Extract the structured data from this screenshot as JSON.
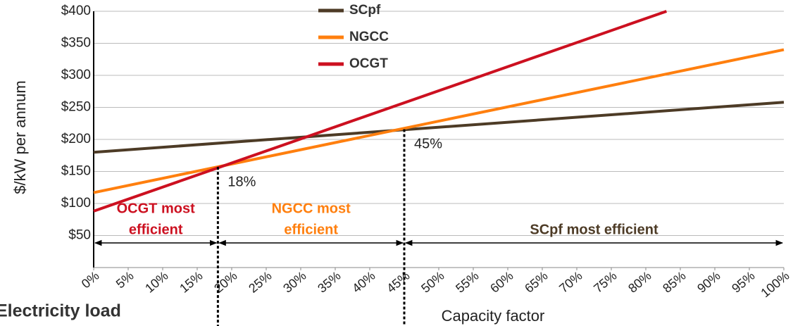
{
  "chart_data": {
    "type": "line",
    "xlabel": "Capacity factor",
    "ylabel": "$/kW per annum",
    "footer": "Electricity load",
    "xlim": [
      0,
      100
    ],
    "xticks": [
      {
        "value": 0,
        "label": "0%"
      },
      {
        "value": 5,
        "label": "5%"
      },
      {
        "value": 10,
        "label": "10%"
      },
      {
        "value": 15,
        "label": "15%"
      },
      {
        "value": 20,
        "label": "20%"
      },
      {
        "value": 25,
        "label": "25%"
      },
      {
        "value": 30,
        "label": "30%"
      },
      {
        "value": 35,
        "label": "35%"
      },
      {
        "value": 40,
        "label": "40%"
      },
      {
        "value": 45,
        "label": "45%"
      },
      {
        "value": 50,
        "label": "50%"
      },
      {
        "value": 55,
        "label": "55%"
      },
      {
        "value": 60,
        "label": "60%"
      },
      {
        "value": 65,
        "label": "65%"
      },
      {
        "value": 70,
        "label": "70%"
      },
      {
        "value": 75,
        "label": "75%"
      },
      {
        "value": 80,
        "label": "80%"
      },
      {
        "value": 85,
        "label": "85%"
      },
      {
        "value": 90,
        "label": "90%"
      },
      {
        "value": 95,
        "label": "95%"
      },
      {
        "value": 100,
        "label": "100%"
      }
    ],
    "ylim": [
      0,
      400
    ],
    "yticks": [
      {
        "value": 50,
        "label": "$50"
      },
      {
        "value": 100,
        "label": "$100"
      },
      {
        "value": 150,
        "label": "$150"
      },
      {
        "value": 200,
        "label": "$200"
      },
      {
        "value": 250,
        "label": "$250"
      },
      {
        "value": 300,
        "label": "$300"
      },
      {
        "value": 350,
        "label": "$350"
      },
      {
        "value": 400,
        "label": "$400"
      }
    ],
    "grid": true,
    "series": [
      {
        "name": "SCpf",
        "color": "#4d3b26",
        "x": [
          0,
          100
        ],
        "values": [
          180,
          258
        ]
      },
      {
        "name": "NGCC",
        "color": "#ff7f0e",
        "x": [
          0,
          100
        ],
        "values": [
          117,
          340
        ]
      },
      {
        "name": "OCGT",
        "color": "#cc1020",
        "x": [
          0,
          83
        ],
        "values": [
          88,
          400
        ]
      }
    ],
    "crossovers": [
      {
        "x": 18,
        "y": 157,
        "label": "18%"
      },
      {
        "x": 45,
        "y": 216,
        "label": "45%"
      }
    ],
    "regions": [
      {
        "lines": [
          "OCGT most",
          "efficient"
        ],
        "color": "#cc1020"
      },
      {
        "lines": [
          "NGCC most",
          "efficient"
        ],
        "color": "#ff7f0e"
      },
      {
        "lines": [
          "SCpf most efficient"
        ],
        "color": "#4d3b26"
      }
    ]
  }
}
